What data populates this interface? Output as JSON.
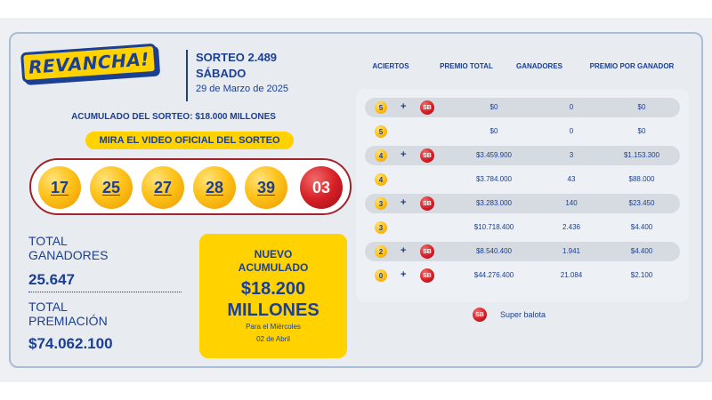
{
  "logo_text": "REVANCHA!",
  "draw": {
    "title": "SORTEO 2.489",
    "day": "SÁBADO",
    "date": "29 de Marzo de 2025"
  },
  "accumulated_label": "ACUMULADO DEL SORTEO: $18.000 MILLONES",
  "video_button": "MIRA EL VIDEO OFICIAL DEL SORTEO",
  "balls": [
    "17",
    "25",
    "27",
    "28",
    "39"
  ],
  "super_ball": "03",
  "totals": {
    "winners_label_1": "TOTAL",
    "winners_label_2": "GANADORES",
    "winners_value": "25.647",
    "prize_label_1": "TOTAL",
    "prize_label_2": "PREMIACIÓN",
    "prize_value": "$74.062.100"
  },
  "new_jackpot": {
    "line1": "NUEVO",
    "line2": "ACUMULADO",
    "amount": "$18.200",
    "unit": "MILLONES",
    "for_day": "Para el Miércoles",
    "for_date": "02 de Abril"
  },
  "table": {
    "headers": {
      "hits": "ACIERTOS",
      "total_prize": "PREMIO TOTAL",
      "winners": "GANADORES",
      "per_winner": "PREMIO POR GANADOR"
    },
    "rows": [
      {
        "hits": "5",
        "sb": true,
        "total": "$0",
        "winners": "0",
        "per": "$0"
      },
      {
        "hits": "5",
        "sb": false,
        "total": "$0",
        "winners": "0",
        "per": "$0"
      },
      {
        "hits": "4",
        "sb": true,
        "total": "$3.459.900",
        "winners": "3",
        "per": "$1.153.300"
      },
      {
        "hits": "4",
        "sb": false,
        "total": "$3.784.000",
        "winners": "43",
        "per": "$88.000"
      },
      {
        "hits": "3",
        "sb": true,
        "total": "$3.283.000",
        "winners": "140",
        "per": "$23.450"
      },
      {
        "hits": "3",
        "sb": false,
        "total": "$10.718.400",
        "winners": "2.436",
        "per": "$4.400"
      },
      {
        "hits": "2",
        "sb": true,
        "total": "$8.540.400",
        "winners": "1.941",
        "per": "$4.400"
      },
      {
        "hits": "0",
        "sb": true,
        "total": "$44.276.400",
        "winners": "21.084",
        "per": "$2.100"
      }
    ],
    "plus_sign": "+",
    "sb_text": "SB"
  },
  "legend": {
    "sb_text": "SB",
    "label": "Super balota"
  },
  "colors": {
    "brand_blue": "#1b3f93",
    "brand_yellow": "#ffd200",
    "super_red": "#d81f26",
    "row_shade": "#d6dbe2"
  }
}
